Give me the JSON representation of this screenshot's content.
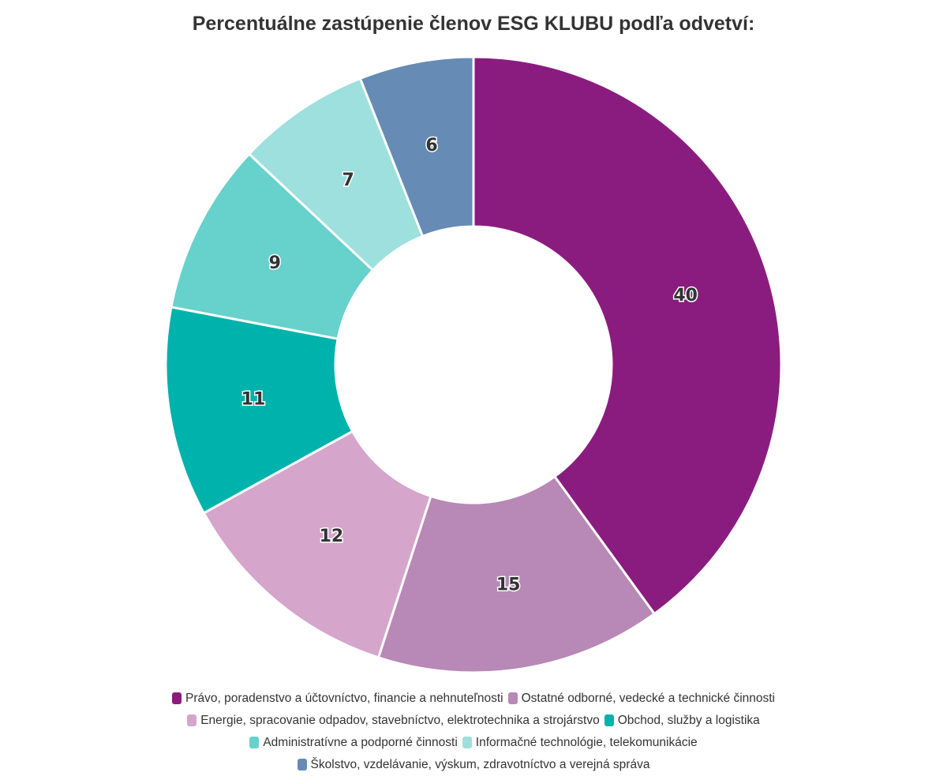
{
  "chart_data": {
    "type": "pie",
    "donut": true,
    "title": "Percentuálne zastúpenie členov ESG KLUBU podľa odvetví:",
    "legend_position": "bottom",
    "slices": [
      {
        "label": "Právo, poradenstvo a účtovníctvo, financie a nehnuteľnosti",
        "value": 40,
        "color": "#8b1c7f"
      },
      {
        "label": "Ostatné odborné, vedecké a technické činnosti",
        "value": 15,
        "color": "#b888b6"
      },
      {
        "label": "Energie, spracovanie odpadov, stavebníctvo, elektrotechnika a strojárstvo",
        "value": 12,
        "color": "#d5a5cb"
      },
      {
        "label": "Obchod, služby a logistika",
        "value": 11,
        "color": "#00b2ac"
      },
      {
        "label": "Administratívne a podporné činnosti",
        "value": 9,
        "color": "#67d1cc"
      },
      {
        "label": "Informačné technológie, telekomunikácie",
        "value": 7,
        "color": "#9de0de"
      },
      {
        "label": "Školstvo, vzdelávanie, výskum, zdravotníctvo a verejná správa",
        "value": 6,
        "color": "#668bb5"
      }
    ]
  }
}
